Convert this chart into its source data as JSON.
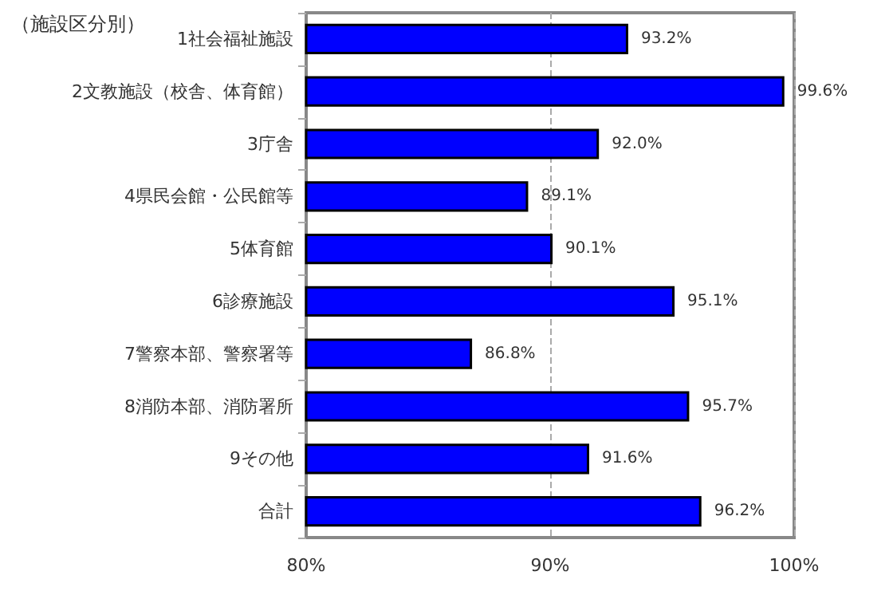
{
  "chart_data": {
    "type": "bar",
    "orientation": "horizontal",
    "title": "（施設区分別）",
    "categories": [
      "1社会福祉施設",
      "2文教施設（校舎、体育館）",
      "3庁舎",
      "4県民会館・公民館等",
      "5体育館",
      "6診療施設",
      "7警察本部、警察署等",
      "8消防本部、消防署所",
      "9その他",
      "合計"
    ],
    "values": [
      93.2,
      99.6,
      92.0,
      89.1,
      90.1,
      95.1,
      86.8,
      95.7,
      91.6,
      96.2
    ],
    "value_labels": [
      "93.2%",
      "99.6%",
      "92.0%",
      "89.1%",
      "90.1%",
      "95.1%",
      "86.8%",
      "95.7%",
      "91.6%",
      "96.2%"
    ],
    "color": "#0000ff",
    "xlim": [
      80,
      100
    ],
    "xticks": [
      {
        "value": 80,
        "label": "80%"
      },
      {
        "value": 90,
        "label": "90%"
      },
      {
        "value": 100,
        "label": "100%"
      }
    ],
    "grid": "x"
  }
}
